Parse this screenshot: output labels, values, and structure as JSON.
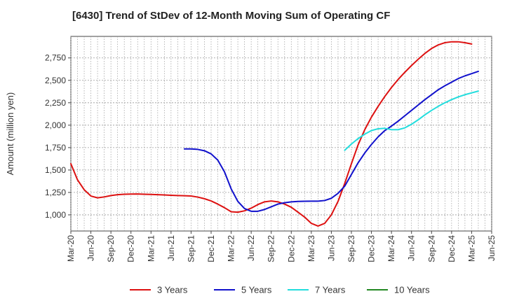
{
  "chart_data": {
    "type": "line",
    "title": "[6430]  Trend of StDev of 12-Month Moving Sum of Operating CF",
    "ylabel": "Amount (million yen)",
    "xlabel": "",
    "x_ticks": [
      "Mar-20",
      "Jun-20",
      "Sep-20",
      "Dec-20",
      "Mar-21",
      "Jun-21",
      "Sep-21",
      "Dec-21",
      "Mar-22",
      "Jun-22",
      "Sep-22",
      "Dec-22",
      "Mar-23",
      "Jun-23",
      "Sep-23",
      "Dec-23",
      "Mar-24",
      "Jun-24",
      "Sep-24",
      "Dec-24",
      "Mar-25",
      "Jun-25"
    ],
    "y_ticks": [
      1000,
      1250,
      1500,
      1750,
      2000,
      2250,
      2500,
      2750
    ],
    "y_tick_labels": [
      "1,000",
      "1,250",
      "1,500",
      "1,750",
      "2,000",
      "2,250",
      "2,500",
      "2,750"
    ],
    "ylim": [
      820,
      2990
    ],
    "grid": true,
    "legend_position": "bottom",
    "series": [
      {
        "name": "3 Years",
        "color": "#dd1111",
        "points": [
          [
            "Mar-20",
            1570
          ],
          [
            "Apr-20",
            1390
          ],
          [
            "May-20",
            1280
          ],
          [
            "Jun-20",
            1210
          ],
          [
            "Jul-20",
            1190
          ],
          [
            "Aug-20",
            1200
          ],
          [
            "Sep-20",
            1215
          ],
          [
            "Oct-20",
            1225
          ],
          [
            "Nov-20",
            1230
          ],
          [
            "Dec-20",
            1232
          ],
          [
            "Jan-21",
            1233
          ],
          [
            "Feb-21",
            1230
          ],
          [
            "Mar-21",
            1228
          ],
          [
            "Apr-21",
            1225
          ],
          [
            "May-21",
            1222
          ],
          [
            "Jun-21",
            1218
          ],
          [
            "Jul-21",
            1215
          ],
          [
            "Aug-21",
            1213
          ],
          [
            "Sep-21",
            1210
          ],
          [
            "Oct-21",
            1198
          ],
          [
            "Nov-21",
            1180
          ],
          [
            "Dec-21",
            1155
          ],
          [
            "Jan-22",
            1120
          ],
          [
            "Feb-22",
            1080
          ],
          [
            "Mar-22",
            1035
          ],
          [
            "Apr-22",
            1030
          ],
          [
            "May-22",
            1045
          ],
          [
            "Jun-22",
            1075
          ],
          [
            "Jul-22",
            1115
          ],
          [
            "Aug-22",
            1145
          ],
          [
            "Sep-22",
            1155
          ],
          [
            "Oct-22",
            1145
          ],
          [
            "Nov-22",
            1120
          ],
          [
            "Dec-22",
            1085
          ],
          [
            "Jan-23",
            1030
          ],
          [
            "Feb-23",
            975
          ],
          [
            "Mar-23",
            905
          ],
          [
            "Apr-23",
            875
          ],
          [
            "May-23",
            905
          ],
          [
            "Jun-23",
            1000
          ],
          [
            "Jul-23",
            1150
          ],
          [
            "Aug-23",
            1350
          ],
          [
            "Sep-23",
            1570
          ],
          [
            "Oct-23",
            1780
          ],
          [
            "Nov-23",
            1950
          ],
          [
            "Dec-23",
            2090
          ],
          [
            "Jan-24",
            2210
          ],
          [
            "Feb-24",
            2320
          ],
          [
            "Mar-24",
            2420
          ],
          [
            "Apr-24",
            2510
          ],
          [
            "May-24",
            2590
          ],
          [
            "Jun-24",
            2665
          ],
          [
            "Jul-24",
            2735
          ],
          [
            "Aug-24",
            2800
          ],
          [
            "Sep-24",
            2855
          ],
          [
            "Oct-24",
            2895
          ],
          [
            "Nov-24",
            2920
          ],
          [
            "Dec-24",
            2930
          ],
          [
            "Jan-25",
            2930
          ],
          [
            "Feb-25",
            2920
          ],
          [
            "Mar-25",
            2905
          ]
        ]
      },
      {
        "name": "5 Years",
        "color": "#1111cc",
        "points": [
          [
            "Aug-21",
            1735
          ],
          [
            "Sep-21",
            1735
          ],
          [
            "Oct-21",
            1730
          ],
          [
            "Nov-21",
            1715
          ],
          [
            "Dec-21",
            1680
          ],
          [
            "Jan-22",
            1610
          ],
          [
            "Feb-22",
            1480
          ],
          [
            "Mar-22",
            1290
          ],
          [
            "Apr-22",
            1150
          ],
          [
            "May-22",
            1070
          ],
          [
            "Jun-22",
            1040
          ],
          [
            "Jul-22",
            1040
          ],
          [
            "Aug-22",
            1060
          ],
          [
            "Sep-22",
            1090
          ],
          [
            "Oct-22",
            1120
          ],
          [
            "Nov-22",
            1135
          ],
          [
            "Dec-22",
            1145
          ],
          [
            "Jan-23",
            1150
          ],
          [
            "Feb-23",
            1152
          ],
          [
            "Mar-23",
            1153
          ],
          [
            "Apr-23",
            1153
          ],
          [
            "May-23",
            1160
          ],
          [
            "Jun-23",
            1185
          ],
          [
            "Jul-23",
            1240
          ],
          [
            "Aug-23",
            1320
          ],
          [
            "Sep-23",
            1450
          ],
          [
            "Oct-23",
            1580
          ],
          [
            "Nov-23",
            1690
          ],
          [
            "Dec-23",
            1785
          ],
          [
            "Jan-24",
            1870
          ],
          [
            "Feb-24",
            1940
          ],
          [
            "Mar-24",
            1990
          ],
          [
            "Apr-24",
            2045
          ],
          [
            "May-24",
            2105
          ],
          [
            "Jun-24",
            2165
          ],
          [
            "Jul-24",
            2225
          ],
          [
            "Aug-24",
            2285
          ],
          [
            "Sep-24",
            2340
          ],
          [
            "Oct-24",
            2395
          ],
          [
            "Nov-24",
            2440
          ],
          [
            "Dec-24",
            2480
          ],
          [
            "Jan-25",
            2520
          ],
          [
            "Feb-25",
            2550
          ],
          [
            "Mar-25",
            2575
          ],
          [
            "Apr-25",
            2600
          ]
        ]
      },
      {
        "name": "7 Years",
        "color": "#22dddd",
        "points": [
          [
            "Aug-23",
            1720
          ],
          [
            "Sep-23",
            1790
          ],
          [
            "Oct-23",
            1850
          ],
          [
            "Nov-23",
            1900
          ],
          [
            "Dec-23",
            1940
          ],
          [
            "Jan-24",
            1960
          ],
          [
            "Feb-24",
            1965
          ],
          [
            "Mar-24",
            1950
          ],
          [
            "Apr-24",
            1950
          ],
          [
            "May-24",
            1970
          ],
          [
            "Jun-24",
            2010
          ],
          [
            "Jul-24",
            2060
          ],
          [
            "Aug-24",
            2115
          ],
          [
            "Sep-24",
            2165
          ],
          [
            "Oct-24",
            2210
          ],
          [
            "Nov-24",
            2250
          ],
          [
            "Dec-24",
            2285
          ],
          [
            "Jan-25",
            2315
          ],
          [
            "Feb-25",
            2340
          ],
          [
            "Mar-25",
            2360
          ],
          [
            "Apr-25",
            2380
          ]
        ]
      },
      {
        "name": "10 Years",
        "color": "#228822",
        "points": []
      }
    ]
  }
}
